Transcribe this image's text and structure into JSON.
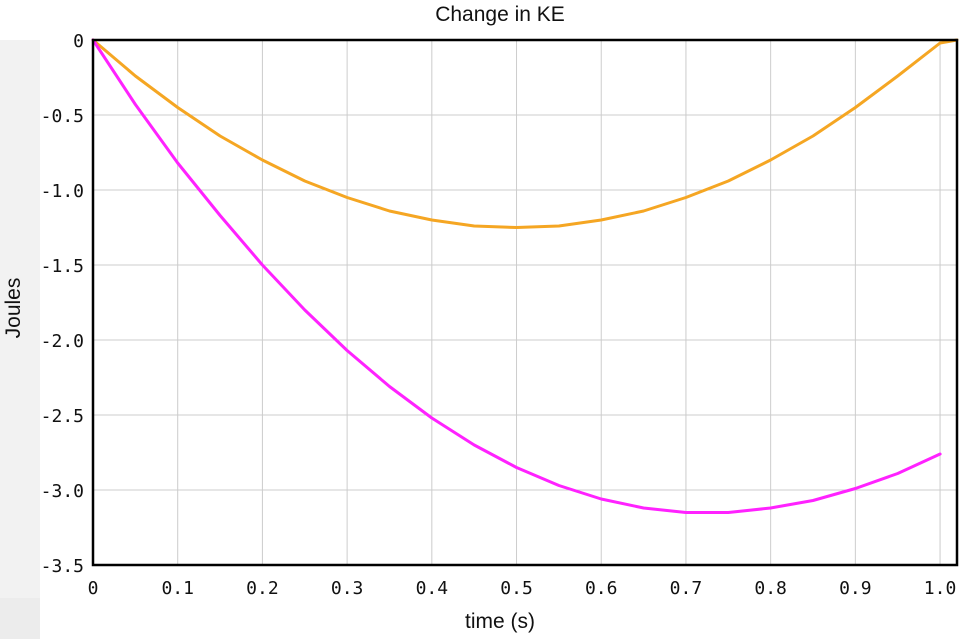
{
  "chart_data": {
    "type": "line",
    "title": "Change in KE",
    "xlabel": "time (s)",
    "ylabel": "Joules",
    "xlim": [
      0,
      1.02
    ],
    "ylim": [
      -3.5,
      0
    ],
    "grid": true,
    "x_ticks": [
      0,
      0.1,
      0.2,
      0.3,
      0.4,
      0.5,
      0.6,
      0.7,
      0.8,
      0.9,
      1.0
    ],
    "x_tick_labels": [
      "0",
      "0.1",
      "0.2",
      "0.3",
      "0.4",
      "0.5",
      "0.6",
      "0.7",
      "0.8",
      "0.9",
      "1.0"
    ],
    "y_ticks": [
      0,
      -0.5,
      -1.0,
      -1.5,
      -2.0,
      -2.5,
      -3.0,
      -3.5
    ],
    "y_tick_labels": [
      "0",
      "-0.5",
      "-1.0",
      "-1.5",
      "-2.0",
      "-2.5",
      "-3.0",
      "-3.5"
    ],
    "series": [
      {
        "color": "#f5a623",
        "x": [
          0,
          0.05,
          0.1,
          0.15,
          0.2,
          0.25,
          0.3,
          0.35,
          0.4,
          0.45,
          0.5,
          0.55,
          0.6,
          0.65,
          0.7,
          0.75,
          0.8,
          0.85,
          0.9,
          0.95,
          1.0,
          1.02
        ],
        "y": [
          0,
          -0.24,
          -0.45,
          -0.64,
          -0.8,
          -0.94,
          -1.05,
          -1.14,
          -1.2,
          -1.24,
          -1.25,
          -1.24,
          -1.2,
          -1.14,
          -1.05,
          -0.94,
          -0.8,
          -0.64,
          -0.45,
          -0.24,
          -0.02,
          0
        ]
      },
      {
        "color": "#ff22ff",
        "x": [
          0,
          0.05,
          0.1,
          0.15,
          0.2,
          0.25,
          0.3,
          0.35,
          0.4,
          0.45,
          0.5,
          0.55,
          0.6,
          0.65,
          0.7,
          0.75,
          0.8,
          0.85,
          0.9,
          0.95,
          1.0
        ],
        "y": [
          0,
          -0.43,
          -0.82,
          -1.17,
          -1.5,
          -1.8,
          -2.07,
          -2.31,
          -2.52,
          -2.7,
          -2.85,
          -2.97,
          -3.06,
          -3.12,
          -3.15,
          -3.15,
          -3.12,
          -3.07,
          -2.99,
          -2.89,
          -2.76
        ]
      }
    ]
  }
}
